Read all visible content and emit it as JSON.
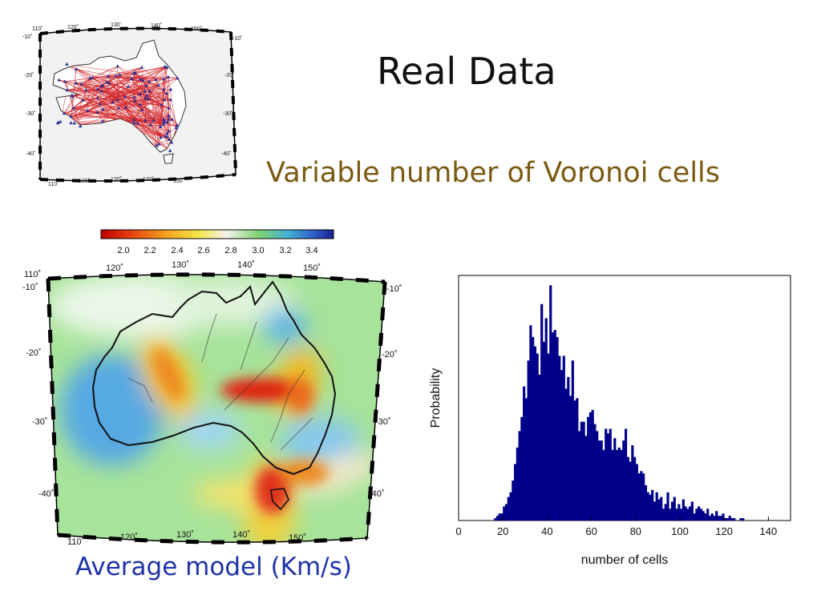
{
  "slide": {
    "title": "Real Data",
    "subtitle": "Variable number of  Voronoi cells",
    "caption": "Average model (Km/s)"
  },
  "ray_map": {
    "lon_labels": [
      "110˚",
      "120˚",
      "130˚",
      "140˚",
      "150˚"
    ],
    "lat_labels": [
      "-10˚",
      "-20˚",
      "-30˚",
      "-40˚"
    ],
    "ray_color": "#d2262a",
    "station_color": "#26309a"
  },
  "velocity_map": {
    "colorbar_ticks": [
      "2.0",
      "2.2",
      "2.4",
      "2.6",
      "2.8",
      "3.0",
      "3.2",
      "3.4"
    ],
    "colorbar_colors": [
      "#c00000",
      "#e43b0f",
      "#f3a11c",
      "#f5e64a",
      "#f2f2ec",
      "#7fd36f",
      "#45b4d6",
      "#2f59c8",
      "#1a1f8f"
    ],
    "lon_labels": [
      "110˚",
      "120˚",
      "130˚",
      "140˚",
      "150˚"
    ],
    "lat_labels": [
      "-10˚",
      "-20˚",
      "-30˚",
      "-40˚"
    ]
  },
  "chart_data": {
    "type": "bar",
    "title": "",
    "xlabel": "number of cells",
    "ylabel": "Probability",
    "xlim": [
      0,
      150
    ],
    "ylim": [
      0,
      1
    ],
    "xticks": [
      0,
      20,
      40,
      60,
      80,
      100,
      120,
      140
    ],
    "bar_color": "#00008b",
    "bin_width": 1,
    "x": [
      16,
      17,
      18,
      19,
      20,
      21,
      22,
      23,
      24,
      25,
      26,
      27,
      28,
      29,
      30,
      31,
      32,
      33,
      34,
      35,
      36,
      37,
      38,
      39,
      40,
      41,
      42,
      43,
      44,
      45,
      46,
      47,
      48,
      49,
      50,
      51,
      52,
      53,
      54,
      55,
      56,
      57,
      58,
      59,
      60,
      61,
      62,
      63,
      64,
      65,
      66,
      67,
      68,
      69,
      70,
      71,
      72,
      73,
      74,
      75,
      76,
      77,
      78,
      79,
      80,
      81,
      82,
      83,
      84,
      85,
      86,
      87,
      88,
      89,
      90,
      91,
      92,
      93,
      94,
      95,
      96,
      97,
      98,
      99,
      100,
      101,
      102,
      103,
      104,
      105,
      106,
      107,
      108,
      109,
      110,
      111,
      112,
      113,
      114,
      115,
      116,
      117,
      118,
      119,
      120,
      121,
      122,
      123,
      124,
      125,
      126,
      127,
      128
    ],
    "values": [
      0.01,
      0.02,
      0.03,
      0.03,
      0.06,
      0.07,
      0.1,
      0.12,
      0.17,
      0.24,
      0.31,
      0.38,
      0.44,
      0.57,
      0.52,
      0.68,
      0.83,
      0.78,
      0.74,
      0.71,
      0.62,
      0.92,
      0.76,
      0.86,
      0.71,
      1.0,
      0.8,
      0.81,
      0.78,
      0.7,
      0.64,
      0.7,
      0.56,
      0.61,
      0.53,
      0.68,
      0.51,
      0.52,
      0.38,
      0.42,
      0.42,
      0.36,
      0.44,
      0.46,
      0.47,
      0.41,
      0.38,
      0.34,
      0.34,
      0.3,
      0.39,
      0.37,
      0.39,
      0.3,
      0.35,
      0.3,
      0.31,
      0.3,
      0.34,
      0.39,
      0.27,
      0.25,
      0.32,
      0.27,
      0.24,
      0.2,
      0.21,
      0.2,
      0.15,
      0.12,
      0.11,
      0.13,
      0.08,
      0.12,
      0.09,
      0.1,
      0.05,
      0.07,
      0.12,
      0.05,
      0.08,
      0.1,
      0.05,
      0.07,
      0.05,
      0.09,
      0.06,
      0.05,
      0.06,
      0.08,
      0.03,
      0.05,
      0.06,
      0.05,
      0.04,
      0.03,
      0.05,
      0.02,
      0.03,
      0.02,
      0.04,
      0.02,
      0.02,
      0.03,
      0.01,
      0.01,
      0.02,
      0.01,
      0.01,
      0.0,
      0.0,
      0.01,
      0.01
    ]
  }
}
